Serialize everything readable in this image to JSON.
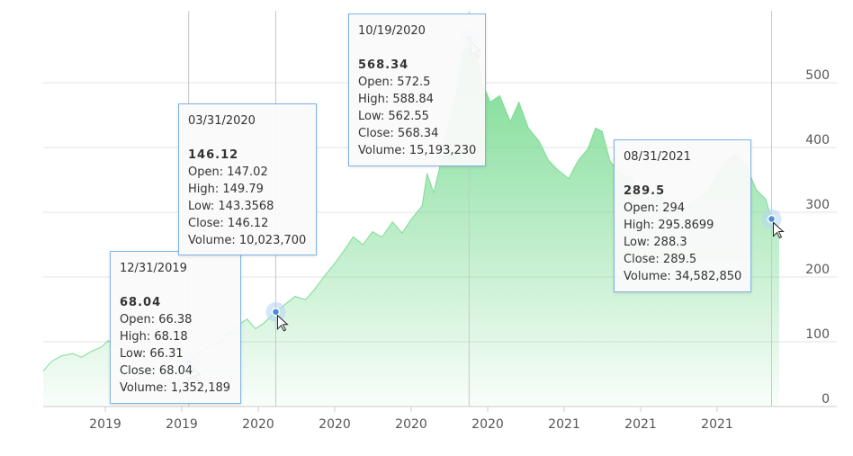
{
  "chart_data": {
    "type": "area",
    "title": "",
    "xlabel": "",
    "ylabel": "",
    "ylim": [
      0,
      600
    ],
    "y_ticks": [
      0,
      100,
      200,
      300,
      400,
      500
    ],
    "x_tick_labels": [
      "2019",
      "2019",
      "2020",
      "2020",
      "2020",
      "2020",
      "2021",
      "2021",
      "2021"
    ],
    "grid": true,
    "series_color": "#7ddc93",
    "x_domain": [
      "2019-08-01",
      "2021-09-08"
    ],
    "series": [
      {
        "points": [
          [
            "2019-08-01",
            55
          ],
          [
            "2019-08-10",
            70
          ],
          [
            "2019-08-20",
            78
          ],
          [
            "2019-09-01",
            82
          ],
          [
            "2019-09-10",
            76
          ],
          [
            "2019-09-20",
            85
          ],
          [
            "2019-10-01",
            92
          ],
          [
            "2019-10-08",
            102
          ],
          [
            "2019-10-15",
            95
          ],
          [
            "2019-10-25",
            88
          ],
          [
            "2019-11-05",
            90
          ],
          [
            "2019-11-15",
            96
          ],
          [
            "2019-11-25",
            86
          ],
          [
            "2019-12-05",
            78
          ],
          [
            "2019-12-15",
            72
          ],
          [
            "2019-12-31",
            68.04
          ],
          [
            "2020-01-10",
            82
          ],
          [
            "2020-01-20",
            92
          ],
          [
            "2020-01-31",
            98
          ],
          [
            "2020-02-10",
            112
          ],
          [
            "2020-02-20",
            125
          ],
          [
            "2020-03-01",
            135
          ],
          [
            "2020-03-10",
            120
          ],
          [
            "2020-03-18",
            128
          ],
          [
            "2020-03-31",
            146.12
          ],
          [
            "2020-04-10",
            158
          ],
          [
            "2020-04-20",
            170
          ],
          [
            "2020-05-01",
            165
          ],
          [
            "2020-05-10",
            180
          ],
          [
            "2020-05-20",
            200
          ],
          [
            "2020-05-31",
            220
          ],
          [
            "2020-06-10",
            240
          ],
          [
            "2020-06-20",
            262
          ],
          [
            "2020-06-30",
            250
          ],
          [
            "2020-07-10",
            270
          ],
          [
            "2020-07-20",
            262
          ],
          [
            "2020-07-31",
            285
          ],
          [
            "2020-08-10",
            268
          ],
          [
            "2020-08-20",
            290
          ],
          [
            "2020-08-31",
            310
          ],
          [
            "2020-09-05",
            360
          ],
          [
            "2020-09-12",
            330
          ],
          [
            "2020-09-20",
            380
          ],
          [
            "2020-09-28",
            440
          ],
          [
            "2020-10-05",
            480
          ],
          [
            "2020-10-12",
            545
          ],
          [
            "2020-10-19",
            568.34
          ],
          [
            "2020-10-26",
            550
          ],
          [
            "2020-11-02",
            500
          ],
          [
            "2020-11-10",
            470
          ],
          [
            "2020-11-20",
            480
          ],
          [
            "2020-12-01",
            440
          ],
          [
            "2020-12-10",
            470
          ],
          [
            "2020-12-20",
            430
          ],
          [
            "2020-12-31",
            410
          ],
          [
            "2021-01-10",
            380
          ],
          [
            "2021-01-20",
            365
          ],
          [
            "2021-01-31",
            352
          ],
          [
            "2021-02-10",
            380
          ],
          [
            "2021-02-20",
            398
          ],
          [
            "2021-02-28",
            430
          ],
          [
            "2021-03-07",
            425
          ],
          [
            "2021-03-15",
            380
          ],
          [
            "2021-03-25",
            360
          ],
          [
            "2021-04-05",
            355
          ],
          [
            "2021-04-15",
            330
          ],
          [
            "2021-04-25",
            320
          ],
          [
            "2021-05-05",
            330
          ],
          [
            "2021-05-15",
            310
          ],
          [
            "2021-05-25",
            300
          ],
          [
            "2021-06-05",
            310
          ],
          [
            "2021-06-15",
            320
          ],
          [
            "2021-06-25",
            330
          ],
          [
            "2021-07-05",
            360
          ],
          [
            "2021-07-15",
            380
          ],
          [
            "2021-07-25",
            390
          ],
          [
            "2021-08-05",
            370
          ],
          [
            "2021-08-15",
            335
          ],
          [
            "2021-08-25",
            320
          ],
          [
            "2021-08-31",
            289.5
          ],
          [
            "2021-09-08",
            275
          ]
        ]
      }
    ]
  },
  "tooltips": [
    {
      "date": "12/31/2019",
      "price": "68.04",
      "open": "Open: 66.38",
      "high": "High: 68.18",
      "low": "Low: 66.31",
      "close": "Close: 68.04",
      "volume": "Volume: 1,352,189"
    },
    {
      "date": "03/31/2020",
      "price": "146.12",
      "open": "Open: 147.02",
      "high": "High: 149.79",
      "low": "Low: 143.3568",
      "close": "Close: 146.12",
      "volume": "Volume: 10,023,700"
    },
    {
      "date": "10/19/2020",
      "price": "568.34",
      "open": "Open: 572.5",
      "high": "High: 588.84",
      "low": "Low: 562.55",
      "close": "Close: 568.34",
      "volume": "Volume: 15,193,230"
    },
    {
      "date": "08/31/2021",
      "price": "289.5",
      "open": "Open: 294",
      "high": "High: 295.8699",
      "low": "Low: 288.3",
      "close": "Close: 289.5",
      "volume": "Volume: 34,582,850"
    }
  ]
}
